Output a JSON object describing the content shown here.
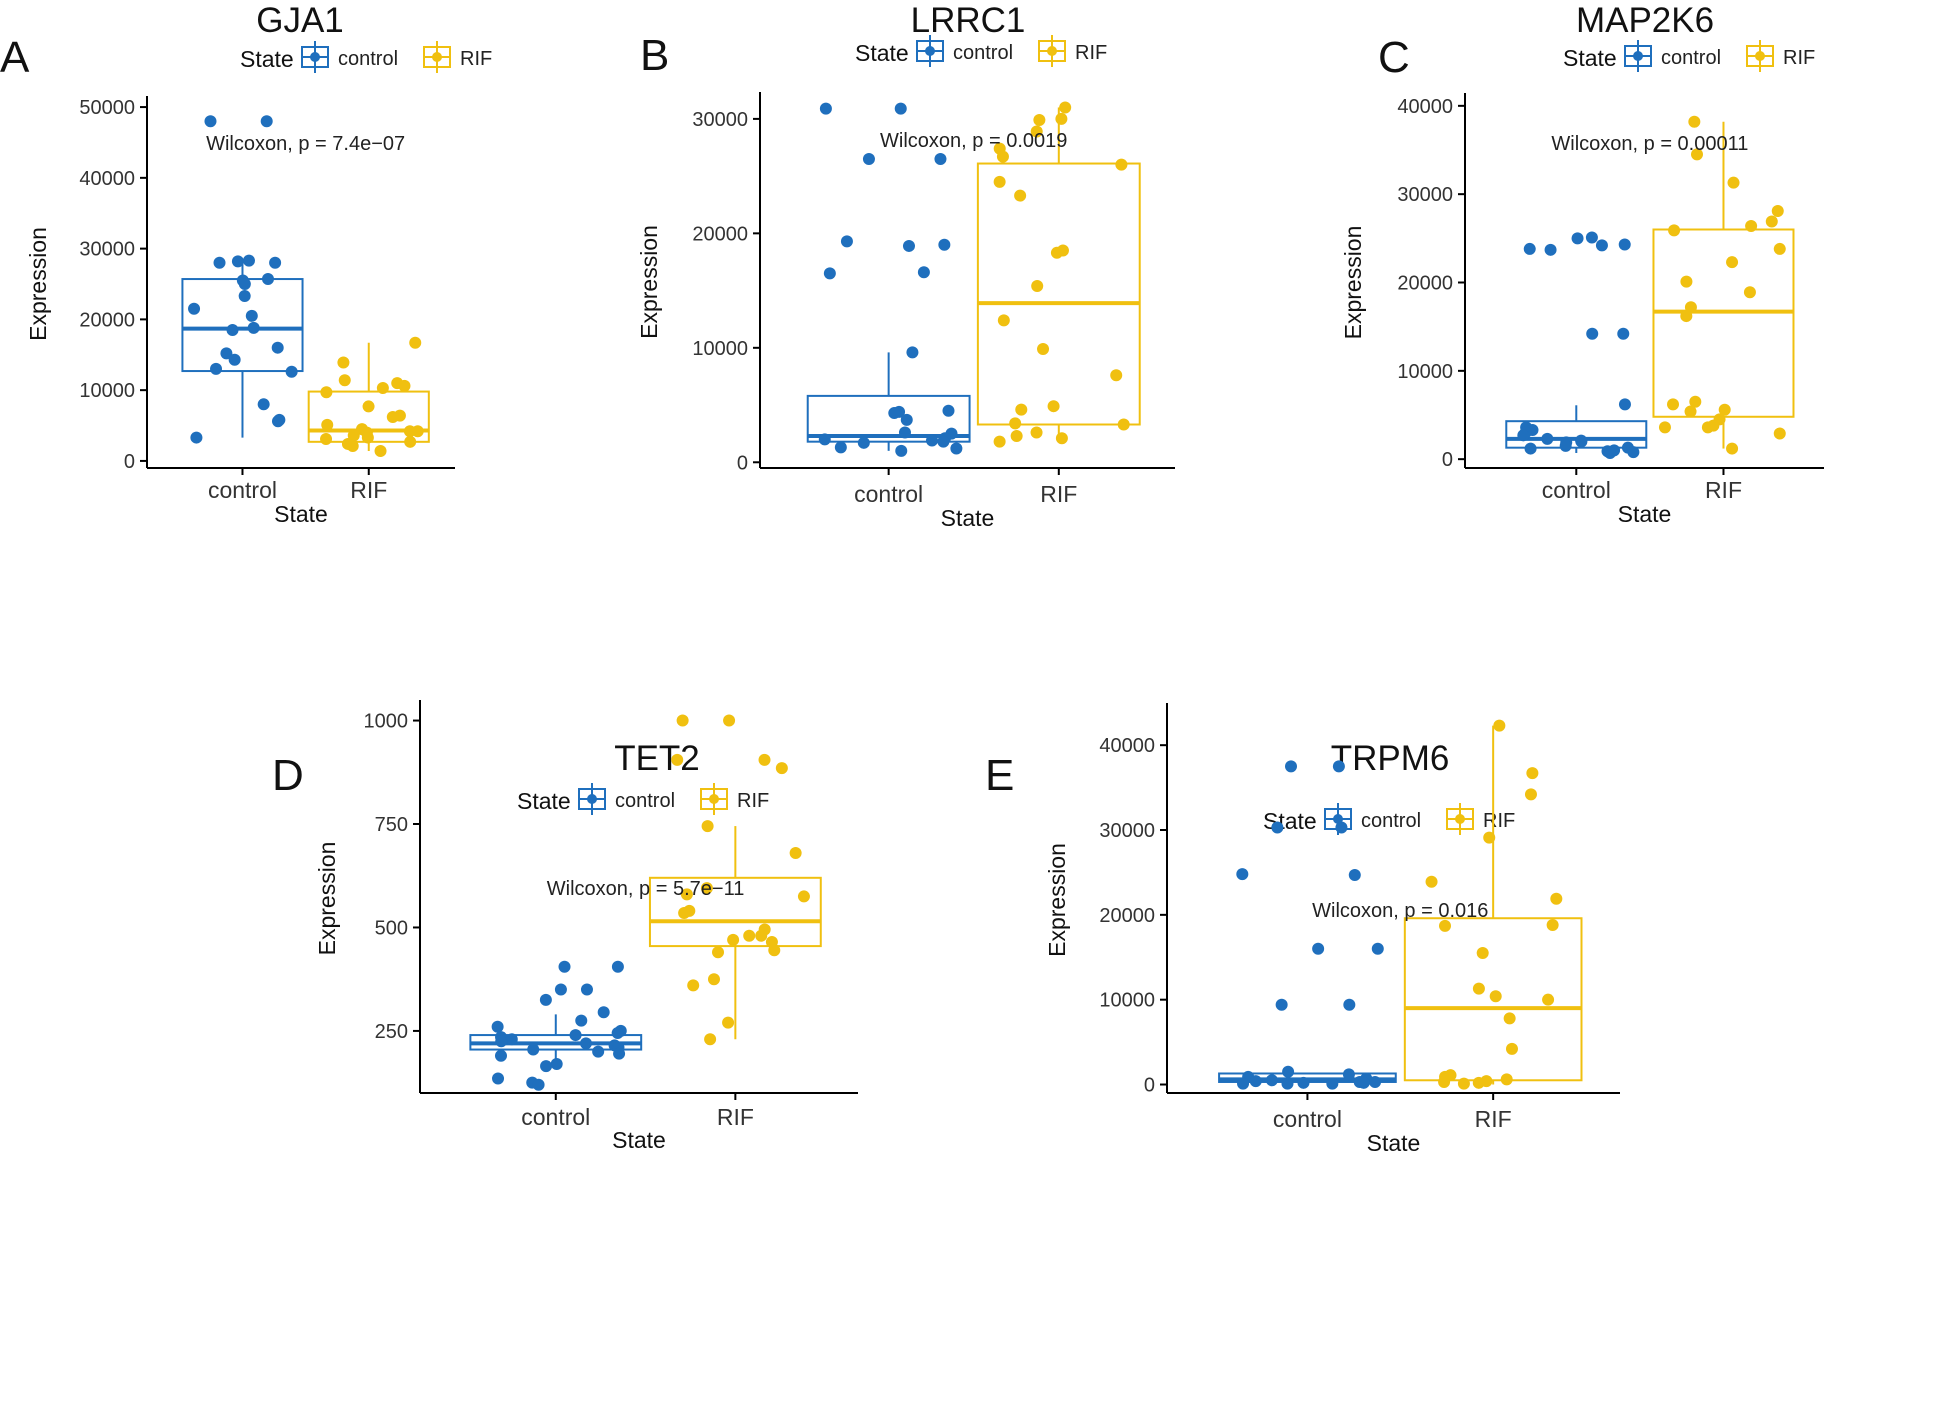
{
  "colors": {
    "control": "#1f6fbd",
    "RIF": "#f0c010"
  },
  "legend": {
    "title": "State",
    "items": [
      "control",
      "RIF"
    ]
  },
  "chart_data": [
    {
      "panel": "A",
      "title": "GJA1",
      "type": "box",
      "xlabel": "State",
      "ylabel": "Expression",
      "categories": [
        "control",
        "RIF"
      ],
      "ylim": [
        -1000,
        51000
      ],
      "yticks": [
        0,
        10000,
        20000,
        30000,
        40000,
        50000
      ],
      "yticklabels": [
        "0",
        "10000",
        "20000",
        "30000",
        "40000",
        "50000"
      ],
      "pvalue_text": "Wilcoxon, p = 7.4e−07",
      "boxes": [
        {
          "group": "control",
          "q1": 12700,
          "median": 18700,
          "q3": 25700,
          "whisker_low": 3300,
          "whisker_high": 28300
        },
        {
          "group": "RIF",
          "q1": 2700,
          "median": 4300,
          "q3": 9800,
          "whisker_low": 1400,
          "whisker_high": 16700
        }
      ],
      "points": [
        {
          "group": "control",
          "values": [
            48000,
            48000,
            28300,
            28200,
            28000,
            28000,
            25700,
            25500,
            25000,
            23300,
            21500,
            20500,
            18800,
            18500,
            16000,
            15200,
            14300,
            13000,
            12600,
            8000,
            5800,
            5600,
            3300
          ]
        },
        {
          "group": "RIF",
          "values": [
            16700,
            13900,
            11400,
            11000,
            10600,
            10300,
            9700,
            7700,
            6400,
            6200,
            5100,
            4500,
            4200,
            4200,
            4000,
            3600,
            3300,
            3100,
            2700,
            2400,
            2100,
            1400
          ]
        }
      ]
    },
    {
      "panel": "B",
      "title": "LRRC1",
      "type": "box",
      "xlabel": "State",
      "ylabel": "Expression",
      "categories": [
        "control",
        "RIF"
      ],
      "ylim": [
        -500,
        32000
      ],
      "yticks": [
        0,
        10000,
        20000,
        30000
      ],
      "yticklabels": [
        "0",
        "10000",
        "20000",
        "30000"
      ],
      "pvalue_text": "Wilcoxon, p = 0.0019",
      "boxes": [
        {
          "group": "control",
          "q1": 1800,
          "median": 2300,
          "q3": 5800,
          "whisker_low": 1000,
          "whisker_high": 9600
        },
        {
          "group": "RIF",
          "q1": 3300,
          "median": 13900,
          "q3": 26100,
          "whisker_low": 1800,
          "whisker_high": 31000
        }
      ],
      "points": [
        {
          "group": "control",
          "values": [
            30900,
            30900,
            26500,
            26500,
            19300,
            19000,
            18900,
            16600,
            16500,
            9600,
            4500,
            4400,
            4300,
            3700,
            2600,
            2500,
            2100,
            2000,
            1900,
            1800,
            1700,
            1300,
            1200,
            1000
          ]
        },
        {
          "group": "RIF",
          "values": [
            31000,
            30000,
            29900,
            28900,
            27400,
            26700,
            26000,
            24500,
            23300,
            18500,
            18300,
            15400,
            12400,
            9900,
            7600,
            4900,
            4600,
            3400,
            3300,
            2600,
            2300,
            2100,
            1800
          ]
        }
      ]
    },
    {
      "panel": "C",
      "title": "MAP2K6",
      "type": "box",
      "xlabel": "State",
      "ylabel": "Expression",
      "categories": [
        "control",
        "RIF"
      ],
      "ylim": [
        -1000,
        41000
      ],
      "yticks": [
        0,
        10000,
        20000,
        30000,
        40000
      ],
      "yticklabels": [
        "0",
        "10000",
        "20000",
        "30000",
        "40000"
      ],
      "pvalue_text": "Wilcoxon, p = 0.00011",
      "boxes": [
        {
          "group": "control",
          "q1": 1300,
          "median": 2300,
          "q3": 4300,
          "whisker_low": 700,
          "whisker_high": 6100
        },
        {
          "group": "RIF",
          "q1": 4800,
          "median": 16700,
          "q3": 26000,
          "whisker_low": 1200,
          "whisker_high": 38200
        }
      ],
      "points": [
        {
          "group": "control",
          "values": [
            25100,
            25000,
            24300,
            24200,
            23800,
            23700,
            14200,
            14200,
            6200,
            3600,
            3300,
            3000,
            2700,
            2300,
            2100,
            2000,
            1900,
            1500,
            1300,
            1200,
            1000,
            900,
            800,
            700
          ]
        },
        {
          "group": "RIF",
          "values": [
            38200,
            34500,
            31300,
            28100,
            26900,
            26400,
            25900,
            23800,
            22300,
            20100,
            18900,
            17200,
            16200,
            6500,
            6200,
            5600,
            5400,
            4500,
            3800,
            3600,
            3600,
            2900,
            1200
          ]
        }
      ]
    },
    {
      "panel": "D",
      "title": "TET2",
      "type": "box",
      "xlabel": "State",
      "ylabel": "Expression",
      "categories": [
        "control",
        "RIF"
      ],
      "ylim": [
        100,
        1040
      ],
      "yticks": [
        250,
        500,
        750,
        1000
      ],
      "yticklabels": [
        "250",
        "500",
        "750",
        "1000"
      ],
      "pvalue_text": "Wilcoxon, p = 5.7e−11",
      "boxes": [
        {
          "group": "control",
          "q1": 205,
          "median": 220,
          "q3": 240,
          "whisker_low": 165,
          "whisker_high": 290
        },
        {
          "group": "RIF",
          "q1": 455,
          "median": 515,
          "q3": 620,
          "whisker_low": 230,
          "whisker_high": 745
        }
      ],
      "points": [
        {
          "group": "control",
          "values": [
            405,
            405,
            350,
            350,
            325,
            295,
            275,
            260,
            250,
            245,
            240,
            235,
            230,
            225,
            220,
            215,
            210,
            205,
            200,
            195,
            190,
            170,
            165,
            135,
            125,
            120
          ]
        },
        {
          "group": "RIF",
          "values": [
            1000,
            1000,
            905,
            905,
            885,
            745,
            680,
            595,
            580,
            575,
            540,
            535,
            495,
            480,
            480,
            470,
            465,
            445,
            440,
            375,
            360,
            270,
            230
          ]
        }
      ]
    },
    {
      "panel": "E",
      "title": "TRPM6",
      "type": "box",
      "xlabel": "State",
      "ylabel": "Expression",
      "categories": [
        "control",
        "RIF"
      ],
      "ylim": [
        -1000,
        44500
      ],
      "yticks": [
        0,
        10000,
        20000,
        30000,
        40000
      ],
      "yticklabels": [
        "0",
        "10000",
        "20000",
        "30000",
        "40000"
      ],
      "pvalue_text": "Wilcoxon, p = 0.016",
      "boxes": [
        {
          "group": "control",
          "q1": 300,
          "median": 600,
          "q3": 1300,
          "whisker_low": 100,
          "whisker_high": 1300
        },
        {
          "group": "RIF",
          "q1": 500,
          "median": 9000,
          "q3": 19600,
          "whisker_low": 0,
          "whisker_high": 42300
        }
      ],
      "points": [
        {
          "group": "control",
          "values": [
            37500,
            37500,
            30300,
            30300,
            24800,
            24700,
            16000,
            16000,
            9400,
            9400,
            1500,
            1200,
            900,
            700,
            500,
            400,
            300,
            300,
            200,
            200,
            100,
            100,
            100
          ]
        },
        {
          "group": "RIF",
          "values": [
            42300,
            36700,
            34200,
            29100,
            23900,
            21900,
            18800,
            18700,
            15500,
            11300,
            10400,
            10000,
            7800,
            4200,
            1100,
            900,
            600,
            400,
            300,
            200,
            100
          ]
        }
      ]
    }
  ]
}
